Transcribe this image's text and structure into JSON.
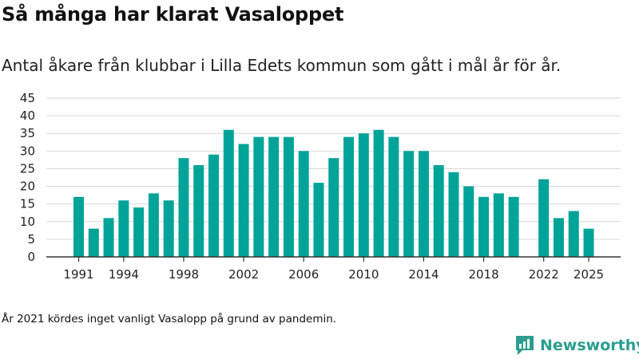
{
  "title": "Så många har klarat Vasaloppet",
  "subtitle": "Antal åkare från klubbar i Lilla Edets kommun som gått i mål år för år.",
  "note": "År 2021 kördes inget vanligt Vasalopp på grund av pandemin.",
  "brand": {
    "name": "Newsworthy",
    "icon": "newsworthy-logo-icon"
  },
  "colors": {
    "bar": "#00a398",
    "grid": "#d9d9d9",
    "axis": "#333333",
    "brand": "#2a9d8f"
  },
  "chart_data": {
    "type": "bar",
    "title": "Så många har klarat Vasaloppet",
    "xlabel": "",
    "ylabel": "",
    "ylim": [
      0,
      45
    ],
    "yticks": [
      0,
      5,
      10,
      15,
      20,
      25,
      30,
      35,
      40,
      45
    ],
    "xticks": [
      1991,
      1994,
      1998,
      2002,
      2006,
      2010,
      2014,
      2018,
      2022,
      2025
    ],
    "grid": true,
    "categories": [
      1991,
      1992,
      1993,
      1994,
      1995,
      1996,
      1997,
      1998,
      1999,
      2000,
      2001,
      2002,
      2003,
      2004,
      2005,
      2006,
      2007,
      2008,
      2009,
      2010,
      2011,
      2012,
      2013,
      2014,
      2015,
      2016,
      2017,
      2018,
      2019,
      2020,
      2021,
      2022,
      2023,
      2024,
      2025
    ],
    "values": [
      17,
      8,
      11,
      16,
      14,
      18,
      16,
      28,
      26,
      29,
      36,
      32,
      34,
      34,
      34,
      30,
      21,
      28,
      34,
      35,
      36,
      34,
      30,
      30,
      26,
      24,
      20,
      17,
      18,
      17,
      null,
      22,
      11,
      13,
      8
    ]
  }
}
